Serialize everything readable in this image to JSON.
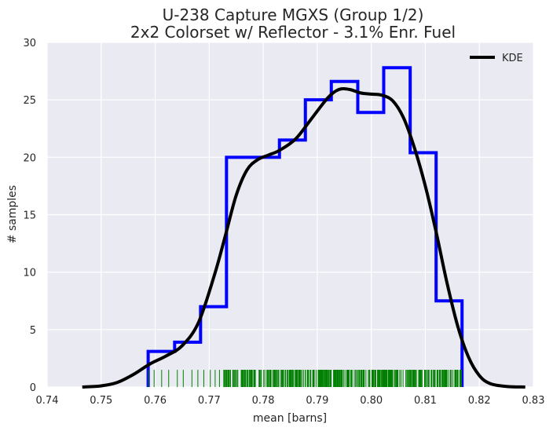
{
  "chart_data": {
    "type": "histogram",
    "title_lines": [
      "U-238 Capture MGXS (Group 1/2)",
      "2x2 Colorset w/ Reflector - 3.1% Enr. Fuel"
    ],
    "xlabel": "mean [barns]",
    "ylabel": "# samples",
    "xlim": [
      0.74,
      0.83
    ],
    "ylim": [
      0,
      30
    ],
    "xticks": [
      "0.74",
      "0.75",
      "0.76",
      "0.77",
      "0.78",
      "0.79",
      "0.80",
      "0.81",
      "0.82",
      "0.83"
    ],
    "xtick_values": [
      0.74,
      0.75,
      0.76,
      0.77,
      0.78,
      0.79,
      0.8,
      0.81,
      0.82,
      0.83
    ],
    "yticks": [
      "0",
      "5",
      "10",
      "15",
      "20",
      "25",
      "30"
    ],
    "ytick_values": [
      0,
      5,
      10,
      15,
      20,
      25,
      30
    ],
    "grid": true,
    "legend": {
      "position": "top-right",
      "entries": [
        {
          "label": "KDE",
          "color": "#000000"
        }
      ]
    },
    "histogram": {
      "color": "#0000ff",
      "bin_edges": [
        0.7587,
        0.7636,
        0.7684,
        0.7732,
        0.7781,
        0.783,
        0.7878,
        0.7926,
        0.7975,
        0.8023,
        0.8072,
        0.812,
        0.8168
      ],
      "values": [
        3.1,
        3.9,
        7.0,
        20.0,
        20.0,
        21.5,
        25.0,
        26.6,
        23.9,
        27.8,
        20.4,
        7.5
      ]
    },
    "kde": {
      "name": "KDE",
      "color": "#000000",
      "points": [
        [
          0.7465,
          0.0
        ],
        [
          0.75,
          0.1
        ],
        [
          0.753,
          0.4
        ],
        [
          0.756,
          1.1
        ],
        [
          0.759,
          2.0
        ],
        [
          0.762,
          2.7
        ],
        [
          0.765,
          3.6
        ],
        [
          0.768,
          5.6
        ],
        [
          0.771,
          9.8
        ],
        [
          0.773,
          13.2
        ],
        [
          0.775,
          16.7
        ],
        [
          0.777,
          18.9
        ],
        [
          0.779,
          19.8
        ],
        [
          0.781,
          20.2
        ],
        [
          0.783,
          20.6
        ],
        [
          0.786,
          21.6
        ],
        [
          0.789,
          23.4
        ],
        [
          0.792,
          25.2
        ],
        [
          0.794,
          25.9
        ],
        [
          0.796,
          25.9
        ],
        [
          0.798,
          25.6
        ],
        [
          0.8,
          25.5
        ],
        [
          0.802,
          25.4
        ],
        [
          0.804,
          24.9
        ],
        [
          0.806,
          23.4
        ],
        [
          0.808,
          20.8
        ],
        [
          0.81,
          17.5
        ],
        [
          0.812,
          13.5
        ],
        [
          0.814,
          9.1
        ],
        [
          0.816,
          5.3
        ],
        [
          0.818,
          2.6
        ],
        [
          0.82,
          1.0
        ],
        [
          0.822,
          0.3
        ],
        [
          0.825,
          0.05
        ],
        [
          0.8285,
          0.0
        ]
      ]
    },
    "rug": {
      "color": "#008000",
      "xmin": 0.7587,
      "xmax": 0.8168,
      "height": 1.5,
      "dense_from": 0.7725
    }
  }
}
